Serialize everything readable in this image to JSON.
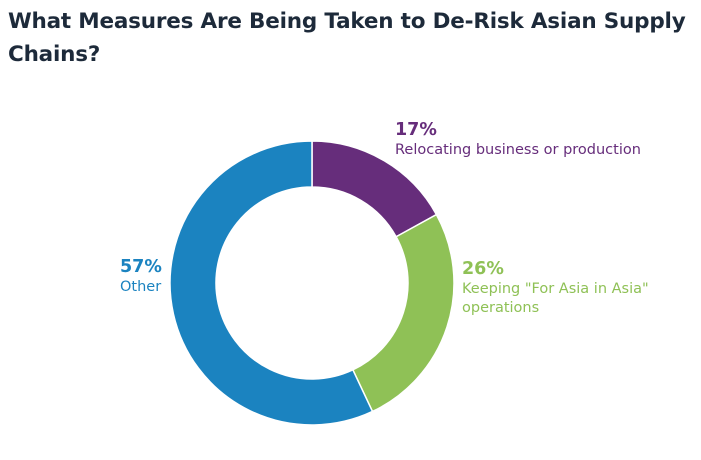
{
  "chart_data": {
    "type": "pie",
    "title": "What Measures Are Being Taken to De-Risk Asian Supply Chains?",
    "labels": [
      "Relocating business or production",
      "Keeping \"For Asia in Asia\" operations",
      "Other"
    ],
    "values": [
      17,
      26,
      57
    ],
    "value_labels": [
      "17%",
      "26%",
      "57%"
    ],
    "colors": [
      "#662d7b",
      "#8fc156",
      "#1b83c0"
    ],
    "hole": true,
    "legend": "none"
  }
}
